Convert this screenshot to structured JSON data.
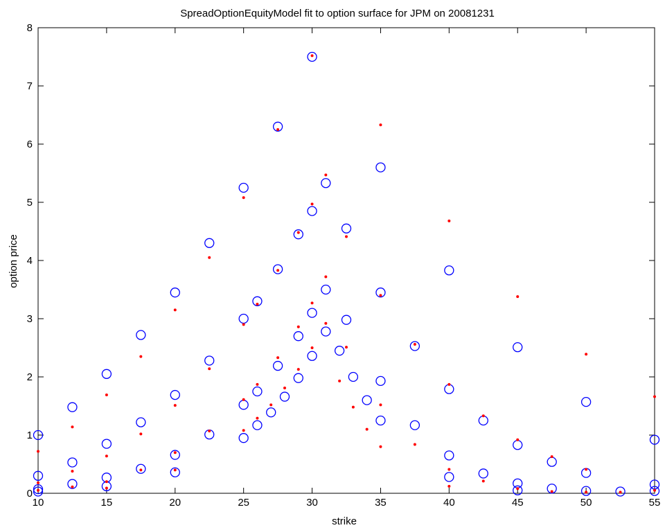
{
  "chart_data": {
    "type": "scatter",
    "title": "SpreadOptionEquityModel fit to option surface for JPM on 20081231",
    "xlabel": "strike",
    "ylabel": "option price",
    "xlim": [
      10,
      55
    ],
    "ylim": [
      0,
      8
    ],
    "xticks": [
      "10",
      "15",
      "20",
      "25",
      "30",
      "35",
      "40",
      "45",
      "50",
      "55"
    ],
    "yticks": [
      "0",
      "1",
      "2",
      "3",
      "4",
      "5",
      "6",
      "7",
      "8"
    ],
    "grid": false,
    "legend": "none",
    "series": [
      {
        "marker": "circle",
        "color": "#0000ff",
        "x": [
          10,
          10,
          10,
          10,
          12.5,
          12.5,
          12.5,
          15,
          15,
          15,
          15,
          17.5,
          17.5,
          17.5,
          20,
          20,
          20,
          20,
          22.5,
          22.5,
          22.5,
          25,
          25,
          25,
          25,
          26,
          26,
          26,
          27,
          27.5,
          27.5,
          27.5,
          28,
          29,
          29,
          29,
          30,
          30,
          30,
          30,
          31,
          31,
          31,
          32,
          32.5,
          32.5,
          33,
          34,
          35,
          35,
          35,
          35,
          37.5,
          37.5,
          40,
          40,
          40,
          40,
          42.5,
          42.5,
          45,
          45,
          45,
          45,
          47.5,
          47.5,
          50,
          50,
          50,
          52.5,
          55,
          55,
          55
        ],
        "y": [
          1.0,
          0.3,
          0.07,
          0.03,
          1.48,
          0.53,
          0.16,
          2.05,
          0.85,
          0.27,
          0.12,
          2.72,
          1.22,
          0.42,
          3.45,
          1.69,
          0.66,
          0.36,
          4.3,
          2.28,
          1.01,
          5.25,
          3.0,
          1.52,
          0.95,
          3.3,
          1.75,
          1.17,
          1.39,
          6.3,
          3.85,
          2.19,
          1.66,
          4.45,
          2.7,
          1.98,
          7.5,
          4.85,
          3.1,
          2.36,
          5.33,
          3.5,
          2.78,
          2.45,
          4.55,
          2.98,
          2.0,
          1.6,
          5.6,
          3.45,
          1.93,
          1.25,
          2.53,
          1.17,
          3.83,
          1.79,
          0.65,
          0.28,
          1.25,
          0.34,
          2.51,
          0.83,
          0.17,
          0.05,
          0.54,
          0.08,
          1.57,
          0.35,
          0.04,
          0.03,
          0.92,
          0.15,
          0.04
        ]
      },
      {
        "marker": "dot",
        "color": "#ff0000",
        "x": [
          10,
          10,
          10,
          12.5,
          12.5,
          12.5,
          15,
          15,
          15,
          15,
          17.5,
          17.5,
          17.5,
          20,
          20,
          20,
          20,
          22.5,
          22.5,
          22.5,
          25,
          25,
          25,
          25,
          26,
          26,
          26,
          27,
          27.5,
          27.5,
          27.5,
          28,
          29,
          29,
          29,
          30,
          30,
          30,
          30,
          31,
          31,
          31,
          32,
          32.5,
          32.5,
          33,
          34,
          35,
          35,
          35,
          35,
          37.5,
          37.5,
          40,
          40,
          40,
          40,
          42.5,
          42.5,
          45,
          45,
          45,
          47.5,
          47.5,
          50,
          50,
          50,
          52.5,
          55,
          55
        ],
        "y": [
          0.72,
          0.18,
          0.05,
          1.14,
          0.38,
          0.11,
          1.69,
          0.64,
          0.2,
          0.09,
          2.35,
          1.02,
          0.4,
          3.15,
          1.51,
          0.7,
          0.4,
          4.05,
          2.14,
          1.07,
          5.08,
          2.9,
          1.61,
          1.08,
          3.25,
          1.87,
          1.29,
          1.52,
          6.25,
          3.83,
          2.33,
          1.81,
          4.48,
          2.86,
          2.13,
          7.52,
          4.97,
          3.27,
          2.5,
          5.47,
          3.72,
          2.92,
          1.93,
          4.41,
          2.51,
          1.48,
          1.1,
          6.33,
          3.4,
          1.52,
          0.8,
          2.56,
          0.84,
          4.68,
          1.87,
          0.41,
          0.12,
          1.33,
          0.21,
          3.38,
          0.92,
          0.08,
          0.63,
          0.03,
          2.39,
          0.41,
          0.02,
          0.02,
          1.66,
          0.05
        ]
      }
    ]
  }
}
